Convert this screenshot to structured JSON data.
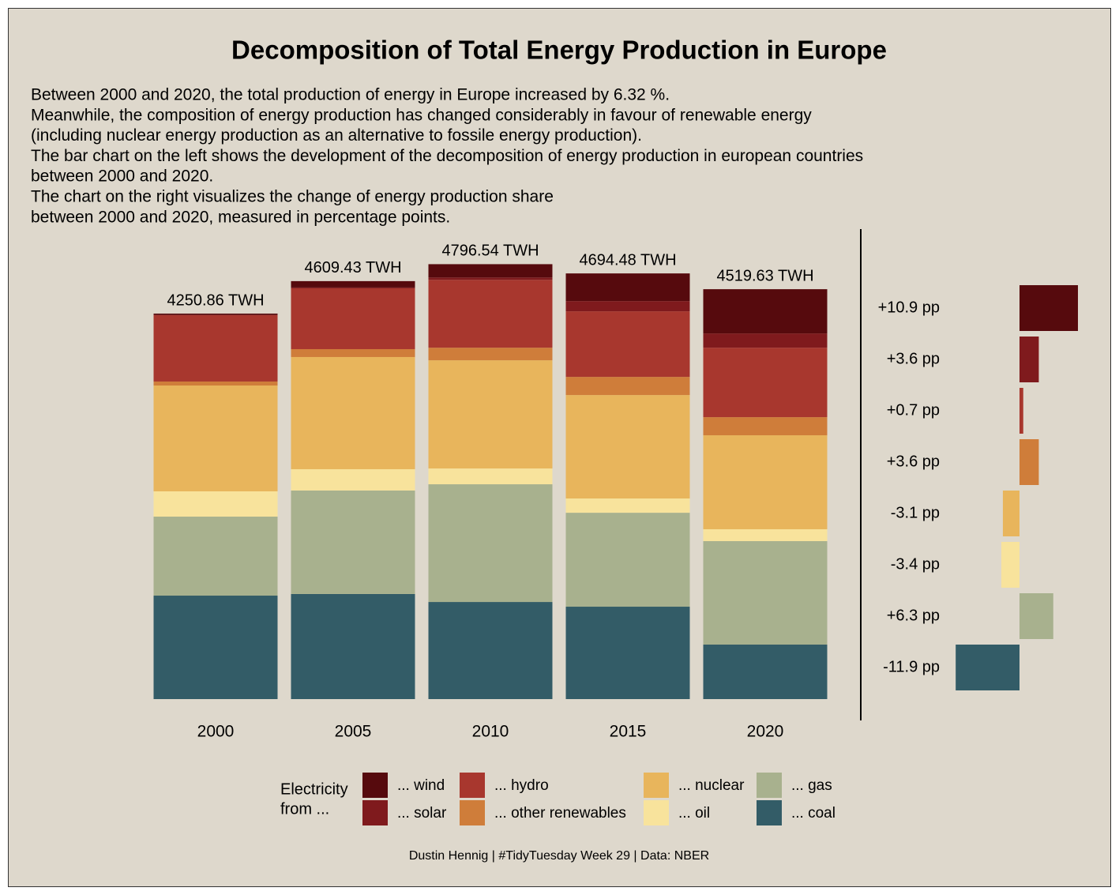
{
  "title": "Decomposition of Total Energy Production in Europe",
  "subtitle": [
    "Between 2000 and 2020, the total production of energy in Europe increased by 6.32 %.",
    "Meanwhile, the composition of energy production has changed considerably in favour of renewable energy",
    "(including nuclear energy production as an alternative to fossile energy production).",
    "The bar chart on the left shows the development of the decomposition of energy production in european countries",
    "between 2000 and 2020.",
    "The chart on the right visualizes the change of energy production share",
    "between 2000 and 2020, measured in percentage points."
  ],
  "legend_title": [
    "Electricity",
    "from ..."
  ],
  "caption": "Dustin Hennig | #TidyTuesday Week 29 | Data: NBER",
  "chart_data": [
    {
      "type": "stacked-bar",
      "categories": [
        "2000",
        "2005",
        "2010",
        "2015",
        "2020"
      ],
      "totals": [
        4250.86,
        4609.43,
        4796.54,
        4694.48,
        4519.63
      ],
      "total_labels": [
        "4250.86 TWH",
        "4609.43 TWH",
        "4796.54 TWH",
        "4694.48 TWH",
        "4519.63 TWH"
      ],
      "series": [
        {
          "name": "... coal",
          "color": "#335c67",
          "values": [
            1141,
            1159,
            1071,
            1019,
            601
          ]
        },
        {
          "name": "... gas",
          "color": "#a8b18e",
          "values": [
            871,
            1141,
            1298,
            1036,
            1141
          ]
        },
        {
          "name": "... oil",
          "color": "#f8e39c",
          "values": [
            279,
            235,
            174,
            157,
            131
          ]
        },
        {
          "name": "... nuclear",
          "color": "#e8b55c",
          "values": [
            1167,
            1237,
            1193,
            1141,
            1036
          ]
        },
        {
          "name": "... other renewables",
          "color": "#cf7d3a",
          "values": [
            44,
            87,
            139,
            200,
            200
          ]
        },
        {
          "name": "... hydro",
          "color": "#a8372e",
          "values": [
            732,
            671,
            748,
            723,
            766
          ]
        },
        {
          "name": "... solar",
          "color": "#7f1a1d",
          "values": [
            2,
            9,
            26,
            113,
            157
          ]
        },
        {
          "name": "... wind",
          "color": "#560a0d",
          "values": [
            15,
            70,
            147,
            305,
            488
          ]
        }
      ]
    },
    {
      "type": "diverging-bar",
      "values": [
        10.9,
        3.6,
        0.7,
        3.6,
        -3.1,
        -3.4,
        6.3,
        -11.9
      ],
      "value_labels": [
        "+10.9 pp",
        "+3.6 pp",
        "+0.7 pp",
        "+3.6 pp",
        "-3.1 pp",
        "-3.4 pp",
        "+6.3 pp",
        "-11.9 pp"
      ],
      "colors": [
        "#560a0d",
        "#7f1a1d",
        "#a8372e",
        "#cf7d3a",
        "#e8b55c",
        "#f8e39c",
        "#a8b18e",
        "#335c67"
      ]
    }
  ]
}
